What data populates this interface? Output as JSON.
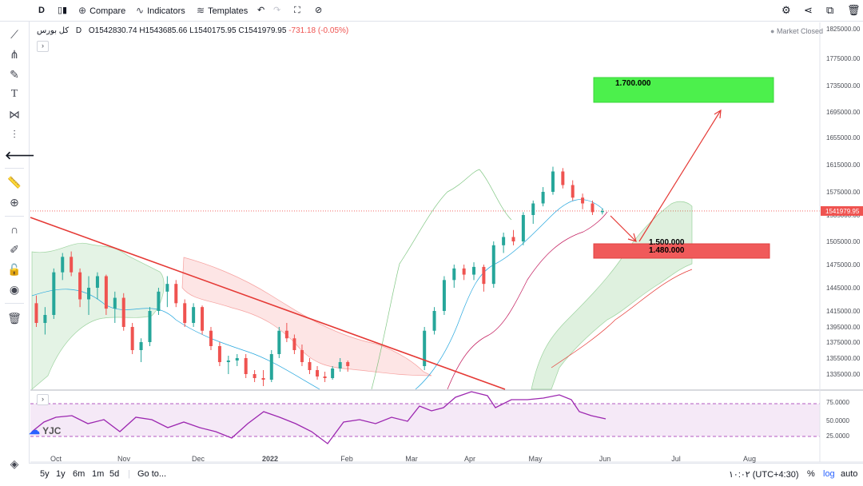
{
  "toolbar": {
    "interval": "D",
    "compare": "Compare",
    "indicators": "Indicators",
    "templates": "Templates"
  },
  "legend": {
    "symbol": "کل بورس",
    "interval": "D",
    "open": "O1542830.74",
    "high": "H1543685.66",
    "low": "L1540175.95",
    "close": "C1541979.95",
    "change": "-731.18 (-0.05%)"
  },
  "market_status": "Market Closed",
  "bottom": {
    "ranges": [
      "5y",
      "1y",
      "6m",
      "1m",
      "5d"
    ],
    "goto": "Go to...",
    "timezone": "۱۰:۰۲ (UTC+4:30)",
    "percent": "%",
    "log": "log",
    "auto": "auto"
  },
  "watermark": "YJC",
  "chart_data": {
    "type": "candlestick",
    "price_axis_ticks": [
      1825000,
      1775000,
      1735000,
      1695000,
      1655000,
      1615000,
      1575000,
      1535000,
      1505000,
      1475000,
      1445000,
      1415000,
      1395000,
      1375000,
      1355000,
      1335000
    ],
    "price_axis_labels": [
      "1825000.00",
      "1775000.00",
      "1735000.00",
      "1695000.00",
      "1655000.00",
      "1615000.00",
      "1575000.00",
      "1535000.00",
      "1505000.00",
      "1475000.00",
      "1445000.00",
      "1415000.00",
      "1395000.00",
      "1375000.00",
      "1355000.00",
      "1335000.00"
    ],
    "last_price_label": "1541979.95",
    "last_price": 1541979.95,
    "x_axis_labels": [
      "Oct",
      "Nov",
      "Dec",
      "2022",
      "Feb",
      "Mar",
      "Apr",
      "May",
      "Jun",
      "Jul",
      "Aug"
    ],
    "rsi_axis_labels": [
      "75.0000",
      "50.0000",
      "25.0000"
    ],
    "annotations": {
      "target_label": "1.700.000",
      "support_label_1": "1.500.000",
      "support_label_2": "1.480.000"
    },
    "candles": [
      [
        1425000,
        1435000,
        1395000,
        1400000
      ],
      [
        1400000,
        1420000,
        1385000,
        1410000
      ],
      [
        1410000,
        1470000,
        1405000,
        1465000
      ],
      [
        1465000,
        1490000,
        1455000,
        1485000
      ],
      [
        1485000,
        1492000,
        1460000,
        1465000
      ],
      [
        1465000,
        1470000,
        1420000,
        1430000
      ],
      [
        1430000,
        1460000,
        1410000,
        1445000
      ],
      [
        1445000,
        1465000,
        1430000,
        1460000
      ],
      [
        1460000,
        1462000,
        1410000,
        1418000
      ],
      [
        1418000,
        1440000,
        1400000,
        1432000
      ],
      [
        1432000,
        1438000,
        1390000,
        1395000
      ],
      [
        1395000,
        1400000,
        1360000,
        1365000
      ],
      [
        1365000,
        1380000,
        1350000,
        1375000
      ],
      [
        1375000,
        1420000,
        1370000,
        1415000
      ],
      [
        1415000,
        1445000,
        1410000,
        1440000
      ],
      [
        1440000,
        1460000,
        1420000,
        1450000
      ],
      [
        1450000,
        1455000,
        1420000,
        1425000
      ],
      [
        1425000,
        1430000,
        1395000,
        1400000
      ],
      [
        1400000,
        1425000,
        1395000,
        1420000
      ],
      [
        1420000,
        1422000,
        1385000,
        1390000
      ],
      [
        1390000,
        1395000,
        1365000,
        1370000
      ],
      [
        1370000,
        1375000,
        1345000,
        1350000
      ],
      [
        1350000,
        1358000,
        1335000,
        1352000
      ],
      [
        1352000,
        1360000,
        1345000,
        1355000
      ],
      [
        1355000,
        1360000,
        1330000,
        1335000
      ],
      [
        1335000,
        1340000,
        1325000,
        1330000
      ],
      [
        1330000,
        1340000,
        1320000,
        1328000
      ],
      [
        1328000,
        1365000,
        1325000,
        1360000
      ],
      [
        1360000,
        1395000,
        1355000,
        1390000
      ],
      [
        1390000,
        1400000,
        1375000,
        1380000
      ],
      [
        1380000,
        1385000,
        1360000,
        1365000
      ],
      [
        1365000,
        1372000,
        1345000,
        1350000
      ],
      [
        1350000,
        1355000,
        1335000,
        1340000
      ],
      [
        1340000,
        1345000,
        1328000,
        1332000
      ],
      [
        1332000,
        1338000,
        1325000,
        1330000
      ],
      [
        1330000,
        1345000,
        1328000,
        1342000
      ],
      [
        1342000,
        1355000,
        1338000,
        1350000
      ],
      [
        1350000,
        1352000,
        1338000,
        1345000
      ],
      [
        1345000,
        1395000,
        1340000,
        1390000
      ],
      [
        1390000,
        1420000,
        1385000,
        1415000
      ],
      [
        1415000,
        1460000,
        1410000,
        1455000
      ],
      [
        1455000,
        1475000,
        1445000,
        1470000
      ],
      [
        1470000,
        1475000,
        1455000,
        1462000
      ],
      [
        1462000,
        1478000,
        1455000,
        1472000
      ],
      [
        1472000,
        1475000,
        1440000,
        1450000
      ],
      [
        1450000,
        1505000,
        1445000,
        1500000
      ],
      [
        1500000,
        1515000,
        1490000,
        1510000
      ],
      [
        1510000,
        1518000,
        1500000,
        1505000
      ],
      [
        1505000,
        1540000,
        1500000,
        1535000
      ],
      [
        1535000,
        1560000,
        1525000,
        1555000
      ],
      [
        1555000,
        1582000,
        1550000,
        1575000
      ],
      [
        1575000,
        1612000,
        1570000,
        1605000
      ],
      [
        1605000,
        1610000,
        1580000,
        1585000
      ],
      [
        1585000,
        1592000,
        1560000,
        1565000
      ],
      [
        1565000,
        1572000,
        1545000,
        1555000
      ],
      [
        1555000,
        1560000,
        1535000,
        1540000
      ],
      [
        1540000,
        1546000,
        1536000,
        1542000
      ]
    ]
  }
}
